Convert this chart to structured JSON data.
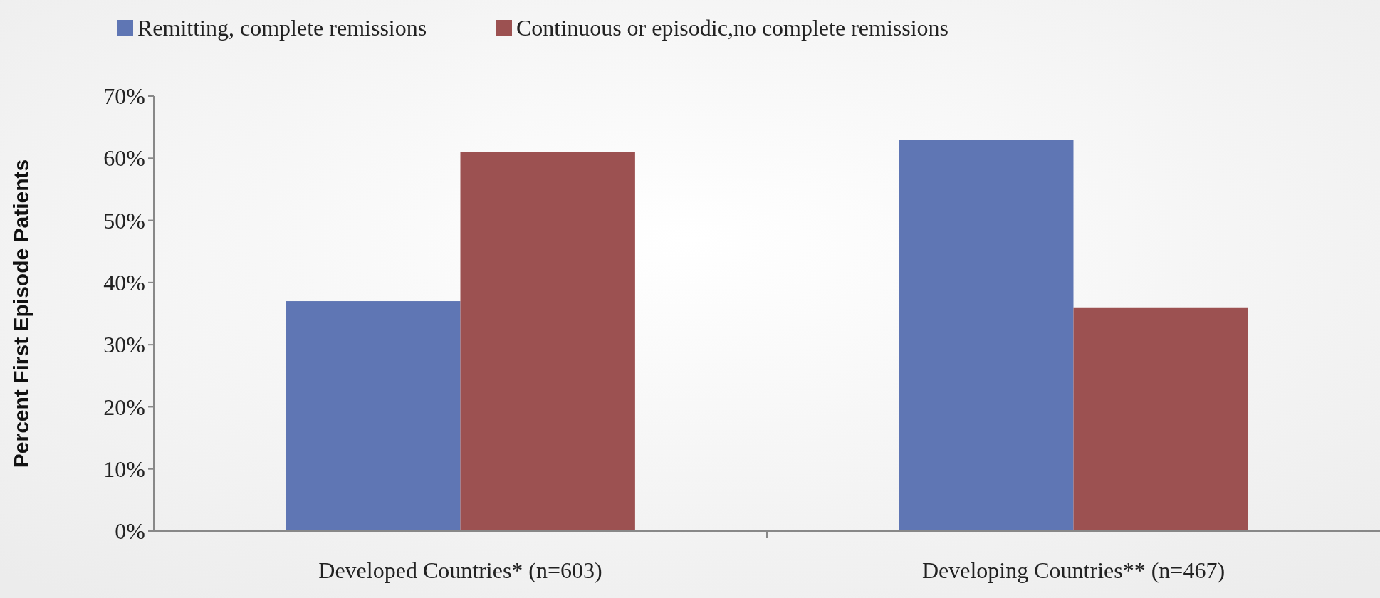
{
  "chart_data": {
    "type": "bar",
    "ylabel": "Percent First Episode Patients",
    "categories": [
      "Developed Countries* (n=603)",
      "Developing Countries** (n=467)"
    ],
    "series": [
      {
        "name": "Remitting, complete remissions",
        "color": "#5f76b4",
        "values": [
          37,
          63
        ]
      },
      {
        "name": "Continuous or episodic,no complete remissions",
        "color": "#9c5151",
        "values": [
          61,
          36
        ]
      }
    ],
    "ylim": [
      0,
      70
    ],
    "yticks": [
      {
        "value": 0,
        "label": "0%"
      },
      {
        "value": 10,
        "label": "10%"
      },
      {
        "value": 20,
        "label": "20%"
      },
      {
        "value": 30,
        "label": "30%"
      },
      {
        "value": 40,
        "label": "40%"
      },
      {
        "value": 50,
        "label": "50%"
      },
      {
        "value": 60,
        "label": "60%"
      },
      {
        "value": 70,
        "label": "70%"
      }
    ],
    "grid": false,
    "legend": "top"
  }
}
